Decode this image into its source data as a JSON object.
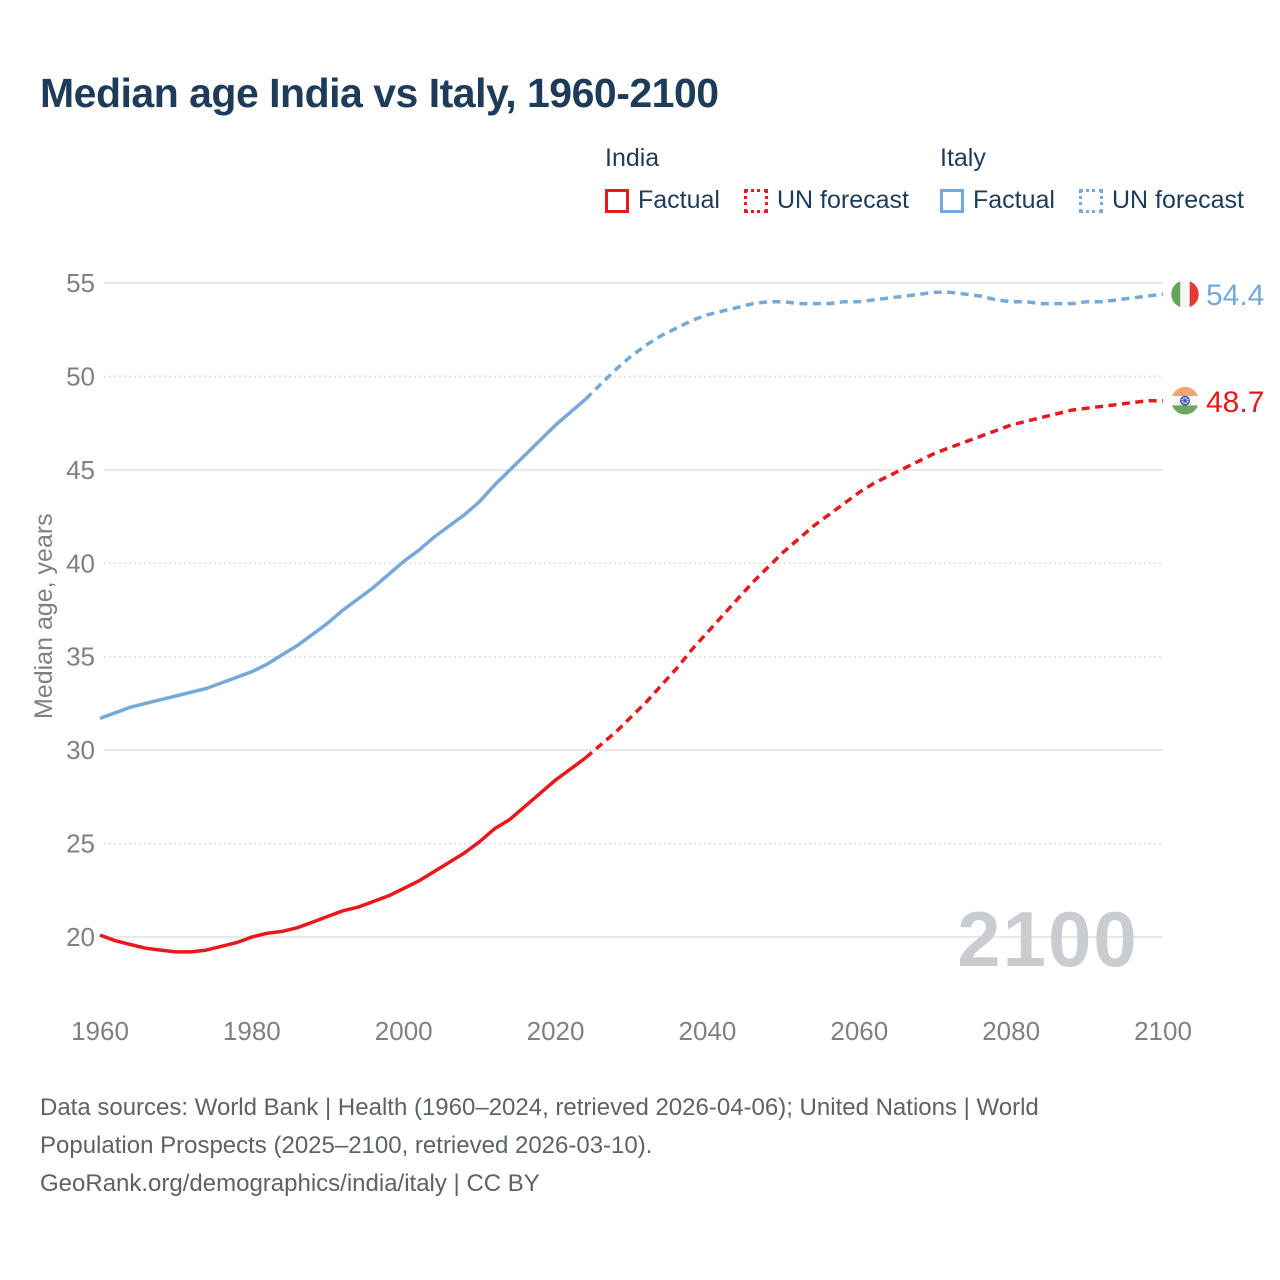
{
  "title": "Median age India vs Italy, 1960-2100",
  "legend": {
    "groups": [
      {
        "name": "India",
        "color": "#e8191c",
        "items": [
          {
            "label": "Factual",
            "style": "solid"
          },
          {
            "label": "UN forecast",
            "style": "dotted"
          }
        ]
      },
      {
        "name": "Italy",
        "color": "#74a9d9",
        "items": [
          {
            "label": "Factual",
            "style": "solid"
          },
          {
            "label": "UN forecast",
            "style": "dotted"
          }
        ]
      }
    ]
  },
  "watermark": "2100",
  "footer": {
    "lines": [
      "Data sources: World Bank | Health (1960–2024, retrieved 2026-04-06); United Nations | World",
      "Population Prospects (2025–2100, retrieved 2026-03-10).",
      "GeoRank.org/demographics/india/italy | CC BY"
    ]
  },
  "chart_data": {
    "type": "line",
    "title": "Median age India vs Italy, 1960-2100",
    "xlabel": "",
    "ylabel": "Median age, years",
    "xlim": [
      1960,
      2100
    ],
    "ylim": [
      19,
      55.5
    ],
    "xticks": [
      1960,
      1980,
      2000,
      2020,
      2040,
      2060,
      2080,
      2100
    ],
    "yticks": [
      20,
      25,
      30,
      35,
      40,
      45,
      50,
      55
    ],
    "grid": "horizontal",
    "legend_position": "top-right",
    "series": [
      {
        "name": "India — Factual",
        "color": "#e8191c",
        "dash": "solid",
        "points": [
          [
            1960,
            20.1
          ],
          [
            1962,
            19.8
          ],
          [
            1964,
            19.6
          ],
          [
            1966,
            19.4
          ],
          [
            1968,
            19.3
          ],
          [
            1970,
            19.2
          ],
          [
            1972,
            19.2
          ],
          [
            1974,
            19.3
          ],
          [
            1976,
            19.5
          ],
          [
            1978,
            19.7
          ],
          [
            1980,
            20.0
          ],
          [
            1982,
            20.2
          ],
          [
            1984,
            20.3
          ],
          [
            1986,
            20.5
          ],
          [
            1988,
            20.8
          ],
          [
            1990,
            21.1
          ],
          [
            1992,
            21.4
          ],
          [
            1994,
            21.6
          ],
          [
            1996,
            21.9
          ],
          [
            1998,
            22.2
          ],
          [
            2000,
            22.6
          ],
          [
            2002,
            23.0
          ],
          [
            2004,
            23.5
          ],
          [
            2006,
            24.0
          ],
          [
            2008,
            24.5
          ],
          [
            2010,
            25.1
          ],
          [
            2012,
            25.8
          ],
          [
            2014,
            26.3
          ],
          [
            2016,
            27.0
          ],
          [
            2018,
            27.7
          ],
          [
            2020,
            28.4
          ],
          [
            2022,
            29.0
          ],
          [
            2024,
            29.6
          ]
        ]
      },
      {
        "name": "India — UN forecast",
        "color": "#e8191c",
        "dash": "dashed",
        "points": [
          [
            2024,
            29.6
          ],
          [
            2026,
            30.3
          ],
          [
            2028,
            31.0
          ],
          [
            2030,
            31.8
          ],
          [
            2032,
            32.6
          ],
          [
            2034,
            33.5
          ],
          [
            2036,
            34.4
          ],
          [
            2038,
            35.4
          ],
          [
            2040,
            36.3
          ],
          [
            2042,
            37.2
          ],
          [
            2044,
            38.1
          ],
          [
            2046,
            39.0
          ],
          [
            2048,
            39.8
          ],
          [
            2050,
            40.6
          ],
          [
            2052,
            41.3
          ],
          [
            2054,
            42.0
          ],
          [
            2056,
            42.6
          ],
          [
            2058,
            43.2
          ],
          [
            2060,
            43.8
          ],
          [
            2062,
            44.3
          ],
          [
            2064,
            44.7
          ],
          [
            2066,
            45.1
          ],
          [
            2068,
            45.5
          ],
          [
            2070,
            45.9
          ],
          [
            2072,
            46.2
          ],
          [
            2074,
            46.5
          ],
          [
            2076,
            46.8
          ],
          [
            2078,
            47.1
          ],
          [
            2080,
            47.4
          ],
          [
            2082,
            47.6
          ],
          [
            2084,
            47.8
          ],
          [
            2086,
            48.0
          ],
          [
            2088,
            48.2
          ],
          [
            2090,
            48.3
          ],
          [
            2092,
            48.4
          ],
          [
            2094,
            48.5
          ],
          [
            2096,
            48.6
          ],
          [
            2098,
            48.7
          ],
          [
            2100,
            48.7
          ]
        ]
      },
      {
        "name": "Italy — Factual",
        "color": "#74a9d9",
        "dash": "solid",
        "points": [
          [
            1960,
            31.7
          ],
          [
            1962,
            32.0
          ],
          [
            1964,
            32.3
          ],
          [
            1966,
            32.5
          ],
          [
            1968,
            32.7
          ],
          [
            1970,
            32.9
          ],
          [
            1972,
            33.1
          ],
          [
            1974,
            33.3
          ],
          [
            1976,
            33.6
          ],
          [
            1978,
            33.9
          ],
          [
            1980,
            34.2
          ],
          [
            1982,
            34.6
          ],
          [
            1984,
            35.1
          ],
          [
            1986,
            35.6
          ],
          [
            1988,
            36.2
          ],
          [
            1990,
            36.8
          ],
          [
            1992,
            37.5
          ],
          [
            1994,
            38.1
          ],
          [
            1996,
            38.7
          ],
          [
            1998,
            39.4
          ],
          [
            2000,
            40.1
          ],
          [
            2002,
            40.7
          ],
          [
            2004,
            41.4
          ],
          [
            2006,
            42.0
          ],
          [
            2008,
            42.6
          ],
          [
            2010,
            43.3
          ],
          [
            2012,
            44.2
          ],
          [
            2014,
            45.0
          ],
          [
            2016,
            45.8
          ],
          [
            2018,
            46.6
          ],
          [
            2020,
            47.4
          ],
          [
            2022,
            48.1
          ],
          [
            2024,
            48.8
          ]
        ]
      },
      {
        "name": "Italy — UN forecast",
        "color": "#74a9d9",
        "dash": "dashed",
        "points": [
          [
            2024,
            48.8
          ],
          [
            2026,
            49.6
          ],
          [
            2028,
            50.4
          ],
          [
            2030,
            51.1
          ],
          [
            2032,
            51.7
          ],
          [
            2034,
            52.2
          ],
          [
            2036,
            52.6
          ],
          [
            2038,
            53.0
          ],
          [
            2040,
            53.3
          ],
          [
            2042,
            53.5
          ],
          [
            2044,
            53.7
          ],
          [
            2046,
            53.9
          ],
          [
            2048,
            54.0
          ],
          [
            2050,
            54.0
          ],
          [
            2052,
            53.9
          ],
          [
            2054,
            53.9
          ],
          [
            2056,
            53.9
          ],
          [
            2058,
            54.0
          ],
          [
            2060,
            54.0
          ],
          [
            2062,
            54.1
          ],
          [
            2064,
            54.2
          ],
          [
            2066,
            54.3
          ],
          [
            2068,
            54.4
          ],
          [
            2070,
            54.5
          ],
          [
            2072,
            54.5
          ],
          [
            2074,
            54.4
          ],
          [
            2076,
            54.3
          ],
          [
            2078,
            54.1
          ],
          [
            2080,
            54.0
          ],
          [
            2082,
            54.0
          ],
          [
            2084,
            53.9
          ],
          [
            2086,
            53.9
          ],
          [
            2088,
            53.9
          ],
          [
            2090,
            54.0
          ],
          [
            2092,
            54.0
          ],
          [
            2094,
            54.1
          ],
          [
            2096,
            54.2
          ],
          [
            2098,
            54.3
          ],
          [
            2100,
            54.4
          ]
        ]
      }
    ],
    "end_markers": [
      {
        "series": "Italy",
        "year": 2100,
        "value": 54.4,
        "label": "54.4",
        "color": "#74a9d9",
        "flag": "italy",
        "flag_orientation": "vertical",
        "flag_colors": [
          "#62a558",
          "#f5f5f3",
          "#e03c36"
        ]
      },
      {
        "series": "India",
        "year": 2100,
        "value": 48.7,
        "label": "48.7",
        "color": "#e8191c",
        "flag": "india",
        "flag_orientation": "horizontal",
        "flag_colors": [
          "#f5a46f",
          "#f8f8f6",
          "#6aa75f"
        ],
        "chakra_color": "#3b55a5"
      }
    ]
  }
}
